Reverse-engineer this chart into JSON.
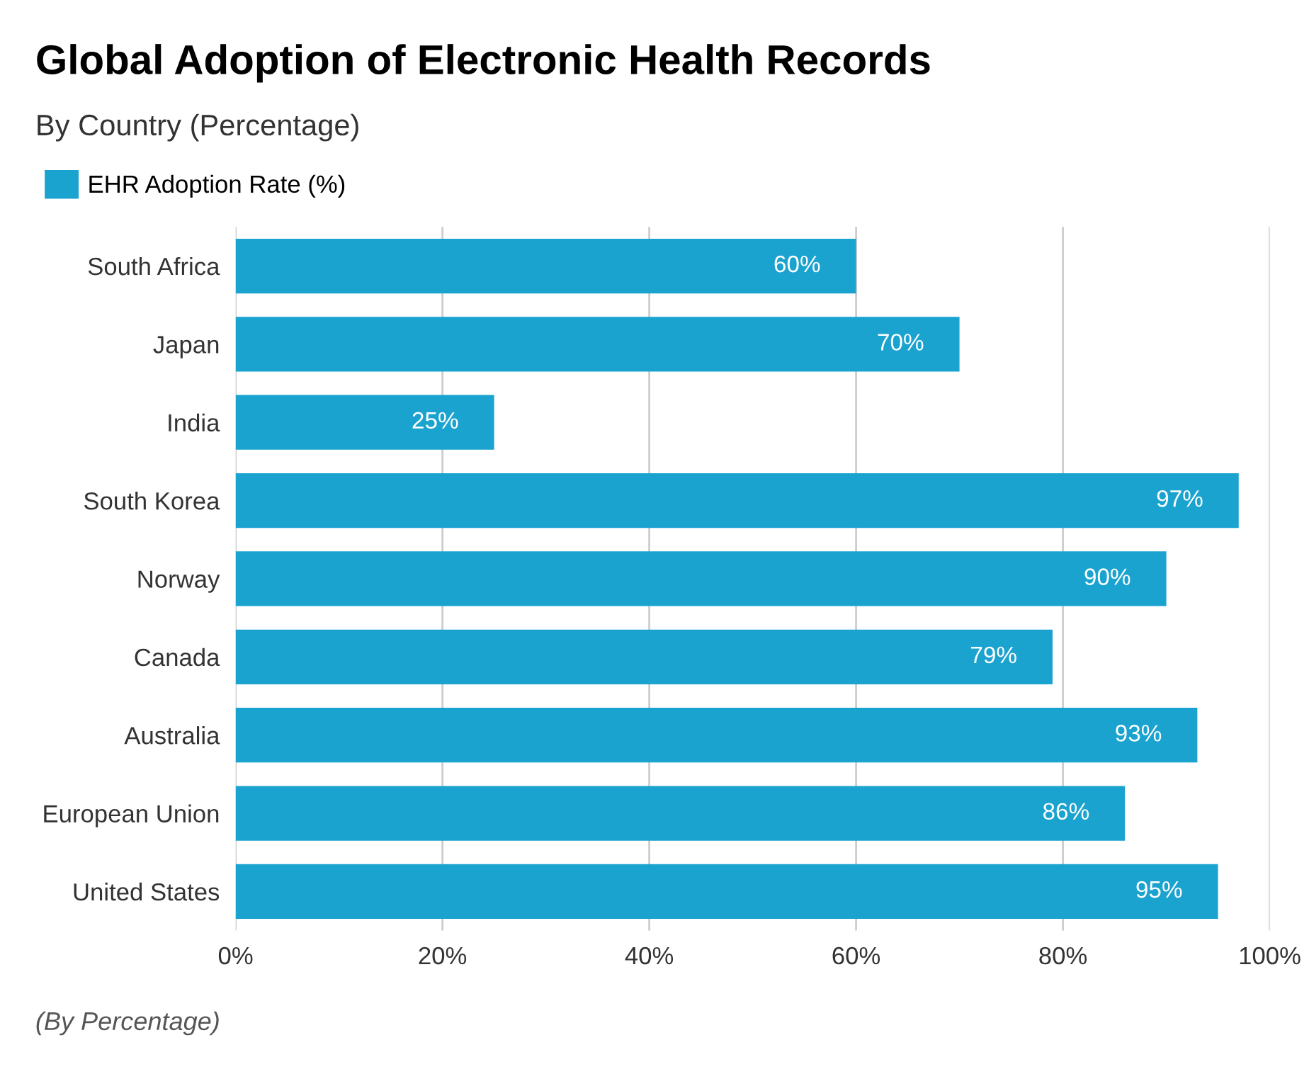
{
  "chart_data": {
    "type": "bar",
    "orientation": "horizontal",
    "title": "Global Adoption of Electronic Health Records",
    "subtitle": "By Country (Percentage)",
    "categories": [
      "South Africa",
      "Japan",
      "India",
      "South Korea",
      "Norway",
      "Canada",
      "Australia",
      "European Union",
      "United States"
    ],
    "series": [
      {
        "name": "EHR Adoption Rate (%)",
        "color": "#1ba3cf",
        "values": [
          60,
          70,
          25,
          97,
          90,
          79,
          93,
          86,
          95
        ],
        "value_labels": [
          "60%",
          "70%",
          "25%",
          "97%",
          "90%",
          "79%",
          "93%",
          "86%",
          "95%"
        ]
      }
    ],
    "xlim": [
      0,
      100
    ],
    "xticks": [
      {
        "value": 0,
        "label": "0%"
      },
      {
        "value": 20,
        "label": "20%"
      },
      {
        "value": 40,
        "label": "40%"
      },
      {
        "value": 60,
        "label": "60%"
      },
      {
        "value": 80,
        "label": "80%"
      },
      {
        "value": 100,
        "label": "100%"
      }
    ],
    "grid": "x",
    "legend": "top left",
    "annotations": [
      "(By Percentage)"
    ]
  }
}
